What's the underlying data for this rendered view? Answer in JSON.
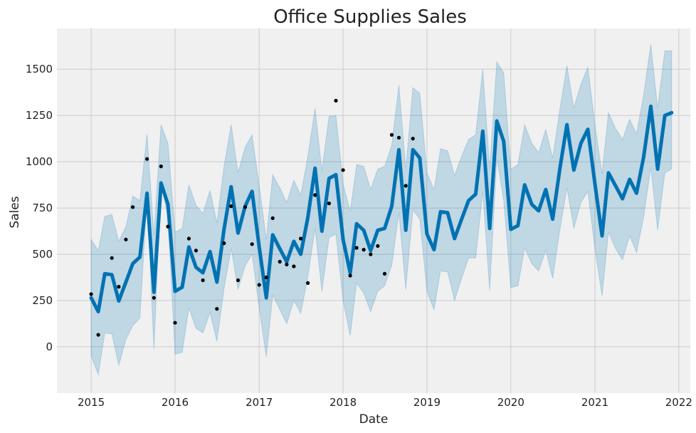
{
  "chart_data": {
    "type": "line",
    "title": "Office Supplies Sales",
    "xlabel": "Date",
    "ylabel": "Sales",
    "xlim": [
      "2014-08-05",
      "2022-02-20"
    ],
    "ylim": [
      -250,
      1720
    ],
    "x_ticks": [
      "2015-01-01",
      "2016-01-01",
      "2017-01-01",
      "2018-01-01",
      "2019-01-01",
      "2020-01-01",
      "2021-01-01",
      "2022-01-01"
    ],
    "x_tick_labels": [
      "2015",
      "2016",
      "2017",
      "2018",
      "2019",
      "2020",
      "2021",
      "2022"
    ],
    "y_ticks": [
      0,
      250,
      500,
      750,
      1000,
      1250,
      1500
    ],
    "y_tick_labels": [
      "0",
      "250",
      "500",
      "750",
      "1000",
      "1250",
      "1500"
    ],
    "grid": true,
    "colors": {
      "background": "#f0f0f0",
      "grid": "#cbcbcb",
      "forecast": "#0072b2",
      "band": "#0072b2",
      "actual": "#000000"
    },
    "series": [
      {
        "kind": "line",
        "x": [
          "2015-01-01",
          "2015-02-01",
          "2015-03-01",
          "2015-04-01",
          "2015-05-01",
          "2015-06-01",
          "2015-07-01",
          "2015-08-01",
          "2015-09-01",
          "2015-10-01",
          "2015-11-01",
          "2015-12-01",
          "2016-01-01",
          "2016-02-01",
          "2016-03-01",
          "2016-04-01",
          "2016-05-01",
          "2016-06-01",
          "2016-07-01",
          "2016-08-01",
          "2016-09-01",
          "2016-10-01",
          "2016-11-01",
          "2016-12-01",
          "2017-01-01",
          "2017-02-01",
          "2017-03-01",
          "2017-04-01",
          "2017-05-01",
          "2017-06-01",
          "2017-07-01",
          "2017-08-01",
          "2017-09-01",
          "2017-10-01",
          "2017-11-01",
          "2017-12-01",
          "2018-01-01",
          "2018-02-01",
          "2018-03-01",
          "2018-04-01",
          "2018-05-01",
          "2018-06-01",
          "2018-07-01",
          "2018-08-01",
          "2018-09-01",
          "2018-10-01",
          "2018-11-01",
          "2018-12-01",
          "2019-01-01",
          "2019-02-01",
          "2019-03-01",
          "2019-04-01",
          "2019-05-01",
          "2019-06-01",
          "2019-07-01",
          "2019-08-01",
          "2019-09-01",
          "2019-10-01",
          "2019-11-01",
          "2019-12-01",
          "2020-01-01",
          "2020-02-01",
          "2020-03-01",
          "2020-04-01",
          "2020-05-01",
          "2020-06-01",
          "2020-07-01",
          "2020-08-01",
          "2020-09-01",
          "2020-10-01",
          "2020-11-01",
          "2020-12-01",
          "2021-01-01",
          "2021-02-01",
          "2021-03-01",
          "2021-04-01",
          "2021-05-01",
          "2021-06-01",
          "2021-07-01",
          "2021-08-01",
          "2021-09-01",
          "2021-10-01",
          "2021-11-01",
          "2021-12-01"
        ],
        "y": [
          265,
          190,
          395,
          390,
          248,
          350,
          450,
          485,
          830,
          295,
          885,
          770,
          300,
          322,
          540,
          430,
          400,
          515,
          350,
          635,
          865,
          615,
          760,
          840,
          540,
          265,
          605,
          530,
          460,
          570,
          500,
          700,
          965,
          625,
          910,
          930,
          580,
          400,
          665,
          630,
          520,
          630,
          640,
          760,
          1065,
          630,
          1065,
          1020,
          610,
          525,
          730,
          725,
          585,
          690,
          790,
          825,
          1165,
          640,
          1220,
          1110,
          635,
          655,
          875,
          770,
          735,
          850,
          690,
          960,
          1200,
          955,
          1100,
          1175,
          880,
          600,
          940,
          870,
          800,
          905,
          830,
          1025,
          1300,
          960,
          1250,
          1265
        ],
        "lower": [
          -50,
          -150,
          75,
          70,
          -100,
          40,
          115,
          155,
          820,
          -15,
          880,
          700,
          -40,
          -30,
          210,
          100,
          75,
          185,
          30,
          315,
          530,
          310,
          440,
          500,
          210,
          -55,
          280,
          200,
          125,
          250,
          180,
          380,
          640,
          300,
          590,
          610,
          250,
          60,
          345,
          290,
          190,
          300,
          330,
          440,
          725,
          310,
          740,
          690,
          300,
          200,
          410,
          405,
          250,
          370,
          480,
          480,
          840,
          305,
          1020,
          790,
          320,
          330,
          535,
          450,
          410,
          520,
          370,
          630,
          860,
          640,
          780,
          840,
          530,
          275,
          620,
          530,
          470,
          600,
          510,
          700,
          970,
          630,
          940,
          960
        ],
        "upper": [
          580,
          520,
          705,
          715,
          570,
          650,
          815,
          790,
          1150,
          600,
          1200,
          1100,
          620,
          640,
          875,
          765,
          720,
          845,
          670,
          975,
          1200,
          940,
          1080,
          1145,
          870,
          580,
          930,
          860,
          780,
          900,
          820,
          1030,
          1290,
          950,
          1245,
          1250,
          880,
          730,
          985,
          975,
          850,
          960,
          975,
          1090,
          1415,
          960,
          1400,
          1370,
          940,
          850,
          1070,
          1060,
          925,
          1030,
          1120,
          1145,
          1500,
          960,
          1540,
          1480,
          960,
          985,
          1200,
          1100,
          1050,
          1175,
          1020,
          1280,
          1520,
          1290,
          1420,
          1510,
          1200,
          935,
          1265,
          1180,
          1120,
          1230,
          1150,
          1360,
          1635,
          1290,
          1600,
          1600
        ]
      },
      {
        "kind": "scatter",
        "x": [
          "2015-01-01",
          "2015-02-01",
          "2015-04-01",
          "2015-05-01",
          "2015-06-01",
          "2015-07-01",
          "2015-09-01",
          "2015-10-01",
          "2015-11-01",
          "2015-12-01",
          "2016-01-01",
          "2016-03-01",
          "2016-04-01",
          "2016-05-01",
          "2016-07-01",
          "2016-08-01",
          "2016-09-01",
          "2016-10-01",
          "2016-11-01",
          "2016-12-01",
          "2017-01-01",
          "2017-02-01",
          "2017-03-01",
          "2017-04-01",
          "2017-05-01",
          "2017-06-01",
          "2017-07-01",
          "2017-08-01",
          "2017-09-01",
          "2017-11-01",
          "2017-12-01",
          "2018-01-01",
          "2018-02-01",
          "2018-03-01",
          "2018-04-01",
          "2018-05-01",
          "2018-06-01",
          "2018-07-01",
          "2018-08-01",
          "2018-09-01",
          "2018-10-01",
          "2018-11-01"
        ],
        "y": [
          285,
          65,
          480,
          325,
          580,
          755,
          1015,
          265,
          975,
          650,
          130,
          585,
          520,
          360,
          205,
          560,
          760,
          360,
          755,
          555,
          335,
          375,
          695,
          460,
          445,
          435,
          585,
          345,
          820,
          775,
          1330,
          955,
          385,
          535,
          525,
          500,
          545,
          395,
          1145,
          1130,
          870,
          1125
        ]
      }
    ]
  }
}
